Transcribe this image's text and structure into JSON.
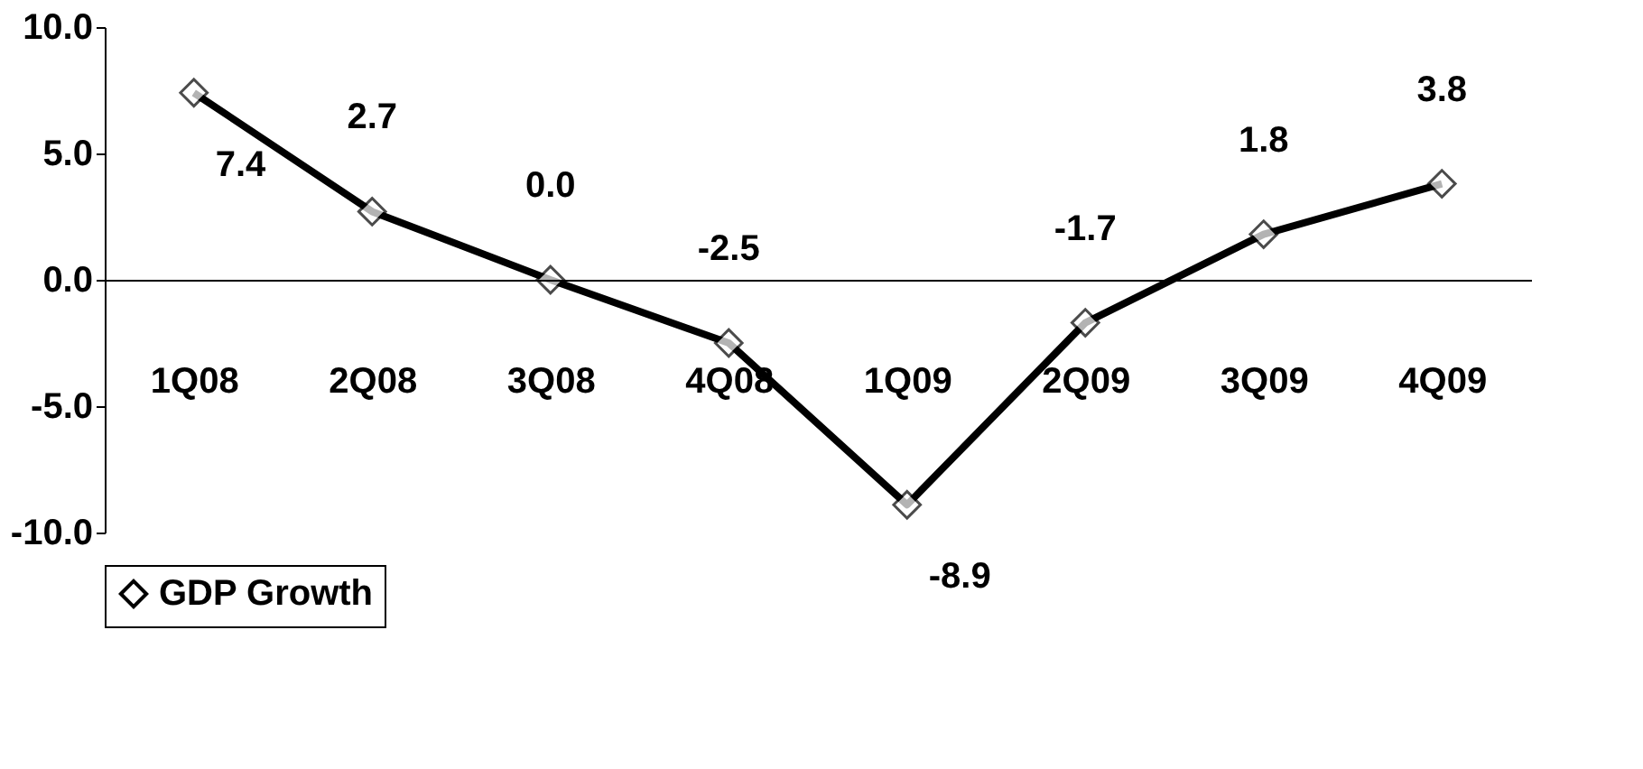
{
  "chart_data": {
    "type": "line",
    "categories": [
      "1Q08",
      "2Q08",
      "3Q08",
      "4Q08",
      "1Q09",
      "2Q09",
      "3Q09",
      "4Q09"
    ],
    "series": [
      {
        "name": "GDP Growth",
        "color": "#000000",
        "values": [
          7.4,
          2.7,
          0.0,
          -2.5,
          -8.9,
          -1.7,
          1.8,
          3.8
        ],
        "value_labels": [
          "7.4",
          "2.7",
          "0.0",
          "-2.5",
          "-8.9",
          "-1.7",
          "1.8",
          "3.8"
        ]
      }
    ],
    "ylim": [
      -10,
      10
    ],
    "yticks": [
      {
        "value": -10,
        "label": "-10.0"
      },
      {
        "value": -5,
        "label": "-5.0"
      },
      {
        "value": 0,
        "label": "0.0"
      },
      {
        "value": 5,
        "label": "5.0"
      },
      {
        "value": 10,
        "label": "10.0"
      }
    ],
    "data_labels": true,
    "marker": "diamond",
    "line_style": "solid",
    "legend": "bottom",
    "grid": false
  }
}
